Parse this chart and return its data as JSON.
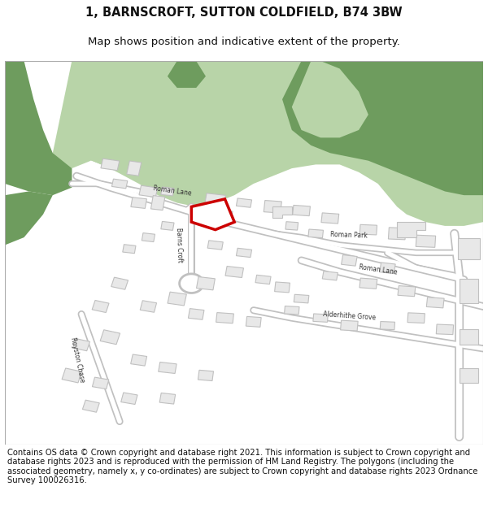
{
  "title_line1": "1, BARNSCROFT, SUTTON COLDFIELD, B74 3BW",
  "title_line2": "Map shows position and indicative extent of the property.",
  "footer_text": "Contains OS data © Crown copyright and database right 2021. This information is subject to Crown copyright and database rights 2023 and is reproduced with the permission of HM Land Registry. The polygons (including the associated geometry, namely x, y co-ordinates) are subject to Crown copyright and database rights 2023 Ordnance Survey 100026316.",
  "bg_color": "#ffffff",
  "map_bg_color": "#ffffff",
  "green_dark": "#6e9c5e",
  "green_light": "#b8d4a8",
  "road_color": "#ffffff",
  "road_outline_color": "#c8c8c8",
  "building_fill": "#e8e8e8",
  "building_edge": "#c0c0c0",
  "highlight_fill": "#ffffff",
  "highlight_edge": "#cc0000",
  "highlight_edge_width": 2.5,
  "title_fontsize": 10.5,
  "subtitle_fontsize": 9.5,
  "footer_fontsize": 7.2,
  "map_border_color": "#aaaaaa"
}
